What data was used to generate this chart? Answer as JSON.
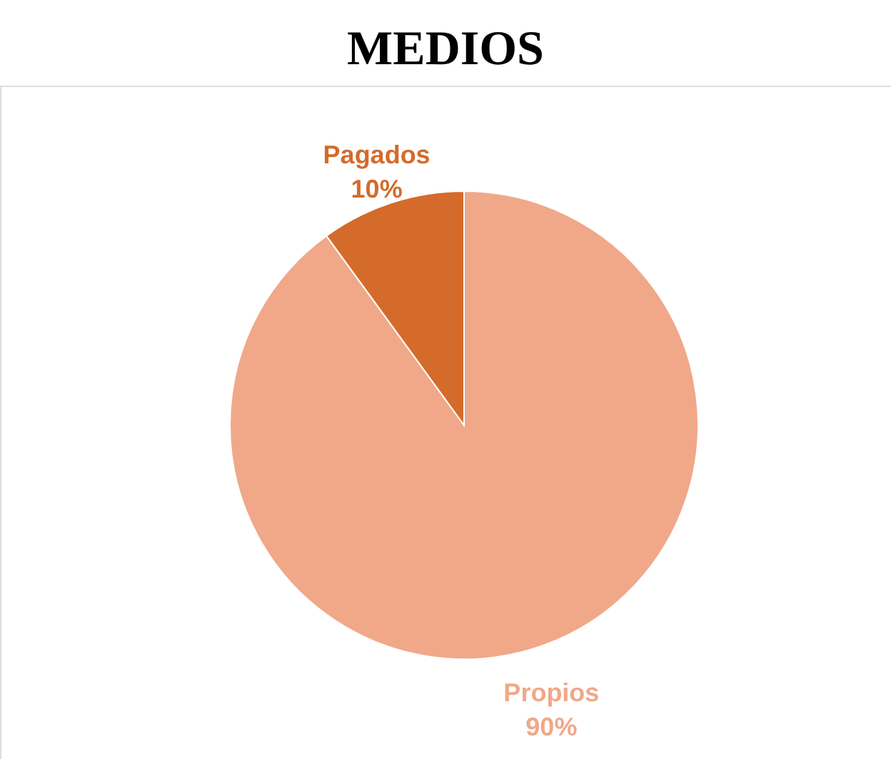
{
  "chart_data": {
    "type": "pie",
    "title": "MEDIOS",
    "categories": [
      "Propios",
      "Pagados"
    ],
    "values": [
      90,
      10
    ],
    "colors": [
      "#f0a889",
      "#d46b2a"
    ],
    "value_labels": [
      "90%",
      "10%"
    ],
    "legend": false
  }
}
